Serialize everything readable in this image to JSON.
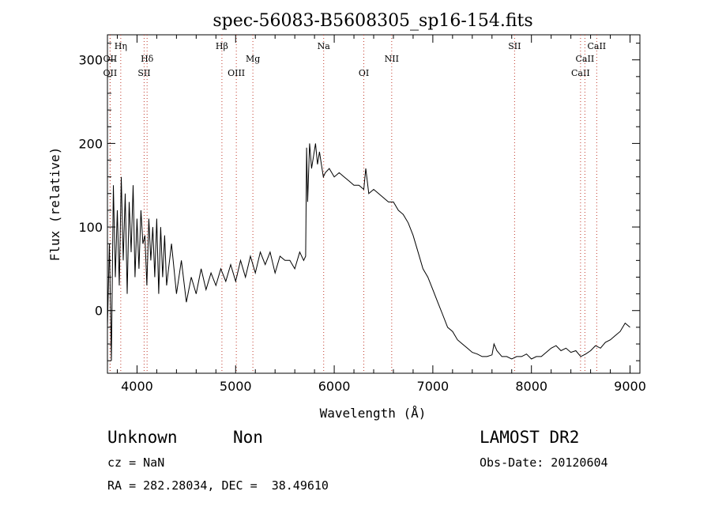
{
  "chart_data": {
    "type": "line",
    "title": "spec-56083-B5608305_sp16-154.fits",
    "xlabel": "Wavelength (Å)",
    "ylabel": "Flux (relative)",
    "xlim": [
      3700,
      9100
    ],
    "ylim": [
      -75,
      330
    ],
    "xticks": [
      4000,
      5000,
      6000,
      7000,
      8000,
      9000
    ],
    "yticks": [
      0,
      100,
      200,
      300
    ],
    "grid": false,
    "line_color": "#000000",
    "series": [
      {
        "x": [
          3700,
          3720,
          3740,
          3760,
          3780,
          3800,
          3820,
          3840,
          3860,
          3880,
          3900,
          3920,
          3940,
          3960,
          3980,
          4000,
          4020,
          4040,
          4060,
          4080,
          4100,
          4120,
          4140,
          4160,
          4180,
          4200,
          4220,
          4240,
          4260,
          4280,
          4300,
          4350,
          4400,
          4450,
          4500,
          4550,
          4600,
          4650,
          4700,
          4750,
          4800,
          4850,
          4900,
          4950,
          5000,
          5050,
          5100,
          5150,
          5200,
          5250,
          5300,
          5350,
          5400,
          5450,
          5500,
          5550,
          5600,
          5650,
          5690,
          5710,
          5720,
          5730,
          5750,
          5770,
          5790,
          5810,
          5830,
          5850,
          5870,
          5890,
          5910,
          5950,
          6000,
          6050,
          6100,
          6150,
          6200,
          6250,
          6300,
          6320,
          6350,
          6400,
          6450,
          6500,
          6550,
          6600,
          6650,
          6700,
          6750,
          6800,
          6850,
          6900,
          6950,
          7000,
          7050,
          7100,
          7150,
          7200,
          7250,
          7300,
          7350,
          7400,
          7450,
          7500,
          7550,
          7600,
          7620,
          7650,
          7700,
          7750,
          7800,
          7850,
          7900,
          7950,
          8000,
          8050,
          8100,
          8150,
          8200,
          8250,
          8300,
          8350,
          8400,
          8450,
          8500,
          8550,
          8600,
          8650,
          8700,
          8750,
          8800,
          8850,
          8900,
          8950,
          9000
        ],
        "y": [
          -20,
          80,
          -60,
          150,
          40,
          120,
          30,
          160,
          60,
          140,
          20,
          130,
          70,
          150,
          40,
          110,
          50,
          120,
          80,
          90,
          30,
          110,
          60,
          100,
          40,
          110,
          20,
          100,
          40,
          90,
          30,
          80,
          20,
          60,
          10,
          40,
          20,
          50,
          25,
          45,
          30,
          50,
          35,
          55,
          35,
          60,
          40,
          65,
          45,
          70,
          55,
          70,
          45,
          65,
          60,
          60,
          50,
          70,
          60,
          65,
          195,
          130,
          200,
          170,
          185,
          200,
          175,
          190,
          175,
          160,
          165,
          170,
          160,
          165,
          160,
          155,
          150,
          150,
          145,
          170,
          140,
          145,
          140,
          135,
          130,
          130,
          120,
          115,
          105,
          90,
          70,
          50,
          40,
          25,
          10,
          -5,
          -20,
          -25,
          -35,
          -40,
          -45,
          -50,
          -52,
          -55,
          -55,
          -53,
          -40,
          -48,
          -55,
          -55,
          -58,
          -55,
          -55,
          -52,
          -58,
          -55,
          -55,
          -50,
          -45,
          -42,
          -48,
          -45,
          -50,
          -48,
          -55,
          -52,
          -48,
          -42,
          -45,
          -38,
          -35,
          -30,
          -25,
          -15,
          -20
        ]
      }
    ],
    "line_markers": [
      {
        "name": "OII",
        "wavelength": 3727
      },
      {
        "name": "OII",
        "wavelength": 3727
      },
      {
        "name": "Hη",
        "wavelength": 3835
      },
      {
        "name": "SII",
        "wavelength": 4072
      },
      {
        "name": "Hδ",
        "wavelength": 4102
      },
      {
        "name": "Hβ",
        "wavelength": 4861
      },
      {
        "name": "OIII",
        "wavelength": 5007
      },
      {
        "name": "Mg",
        "wavelength": 5175
      },
      {
        "name": "Na",
        "wavelength": 5893
      },
      {
        "name": "OI",
        "wavelength": 6300
      },
      {
        "name": "NII",
        "wavelength": 6583
      },
      {
        "name": "SII",
        "wavelength": 7829
      },
      {
        "name": "CaII",
        "wavelength": 8498
      },
      {
        "name": "CaII",
        "wavelength": 8542
      },
      {
        "name": "CaII",
        "wavelength": 8662
      }
    ]
  },
  "info": {
    "class": "Unknown",
    "subclass": "Non",
    "survey": "LAMOST DR2",
    "cz": "cz = NaN",
    "obs_date": "Obs-Date: 20120604",
    "coords": "RA = 282.28034, DEC =  38.49610"
  }
}
